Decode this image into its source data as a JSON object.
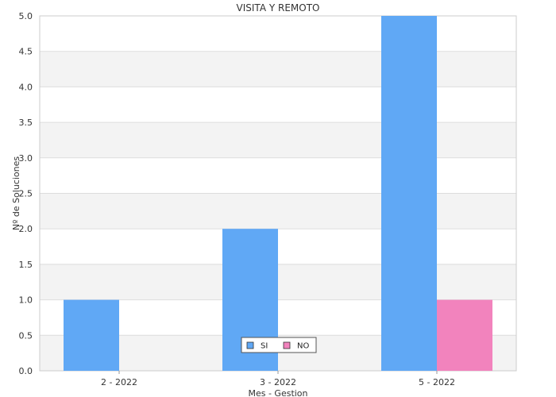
{
  "chart_data": {
    "type": "bar",
    "title": "VISITA Y REMOTO",
    "xlabel": "Mes - Gestion",
    "ylabel": "Nº de Soluciones",
    "categories": [
      "2 - 2022",
      "3 - 2022",
      "5 - 2022"
    ],
    "series": [
      {
        "name": "SI",
        "values": [
          1,
          2,
          5
        ],
        "color": "#60a8f5"
      },
      {
        "name": "NO",
        "values": [
          0,
          0,
          1
        ],
        "color": "#f283bd"
      }
    ],
    "ylim": [
      0,
      5
    ],
    "yticks": [
      "0.0",
      "0.5",
      "1.0",
      "1.5",
      "2.0",
      "2.5",
      "3.0",
      "3.5",
      "4.0",
      "4.5",
      "5.0"
    ],
    "grid": true,
    "legend_position": "bottom-center",
    "colors": {
      "band": "#f3f3f3",
      "grid": "#dddddd",
      "frame": "#cccccc"
    }
  }
}
